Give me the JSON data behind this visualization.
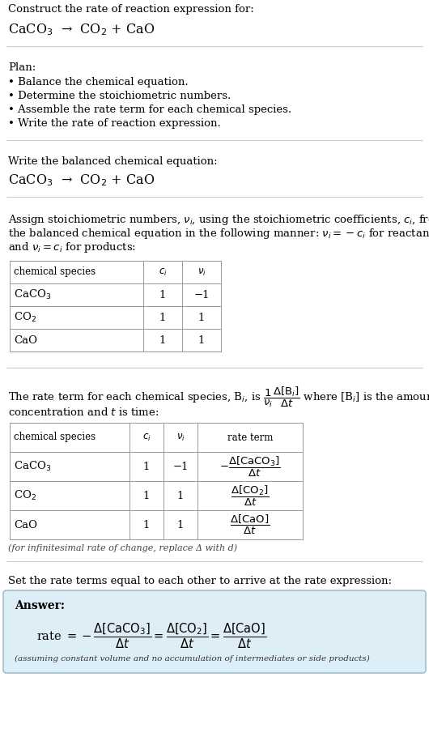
{
  "title_line1": "Construct the rate of reaction expression for:",
  "title_line2": "CaCO$_3$  →  CO$_2$ + CaO",
  "bg_color": "#ffffff",
  "section_line_color": "#cccccc",
  "answer_box_facecolor": "#ddeef6",
  "answer_box_edgecolor": "#99bbcc",
  "plan_header": "Plan:",
  "plan_items": [
    "• Balance the chemical equation.",
    "• Determine the stoichiometric numbers.",
    "• Assemble the rate term for each chemical species.",
    "• Write the rate of reaction expression."
  ],
  "balanced_header": "Write the balanced chemical equation:",
  "balanced_eq": "CaCO$_3$  →  CO$_2$ + CaO",
  "stoich_intro_lines": [
    "Assign stoichiometric numbers, $\\nu_i$, using the stoichiometric coefficients, $c_i$, from",
    "the balanced chemical equation in the following manner: $\\nu_i = -c_i$ for reactants",
    "and $\\nu_i = c_i$ for products:"
  ],
  "table1_headers": [
    "chemical species",
    "$c_i$",
    "$\\nu_i$"
  ],
  "table1_rows": [
    [
      "CaCO$_3$",
      "1",
      "−1"
    ],
    [
      "CO$_2$",
      "1",
      "1"
    ],
    [
      "CaO",
      "1",
      "1"
    ]
  ],
  "rate_term_line1": "The rate term for each chemical species, B$_i$, is $\\dfrac{1}{\\nu_i}\\dfrac{\\Delta[\\mathrm{B}_i]}{\\Delta t}$ where [B$_i$] is the amount",
  "rate_term_line2": "concentration and $t$ is time:",
  "table2_headers": [
    "chemical species",
    "$c_i$",
    "$\\nu_i$",
    "rate term"
  ],
  "table2_rows": [
    [
      "CaCO$_3$",
      "1",
      "−1",
      "$-\\dfrac{\\Delta[\\mathrm{CaCO_3}]}{\\Delta t}$"
    ],
    [
      "CO$_2$",
      "1",
      "1",
      "$\\dfrac{\\Delta[\\mathrm{CO_2}]}{\\Delta t}$"
    ],
    [
      "CaO",
      "1",
      "1",
      "$\\dfrac{\\Delta[\\mathrm{CaO}]}{\\Delta t}$"
    ]
  ],
  "infinitesimal_note": "(for infinitesimal rate of change, replace Δ with d)",
  "set_equal_text": "Set the rate terms equal to each other to arrive at the rate expression:",
  "answer_label": "Answer:",
  "answer_eq": "rate $= -\\dfrac{\\Delta[\\mathrm{CaCO_3}]}{\\Delta t} = \\dfrac{\\Delta[\\mathrm{CO_2}]}{\\Delta t} = \\dfrac{\\Delta[\\mathrm{CaO}]}{\\Delta t}$",
  "answer_note": "(assuming constant volume and no accumulation of intermediates or side products)",
  "table_line_color": "#999999",
  "text_color": "#000000"
}
